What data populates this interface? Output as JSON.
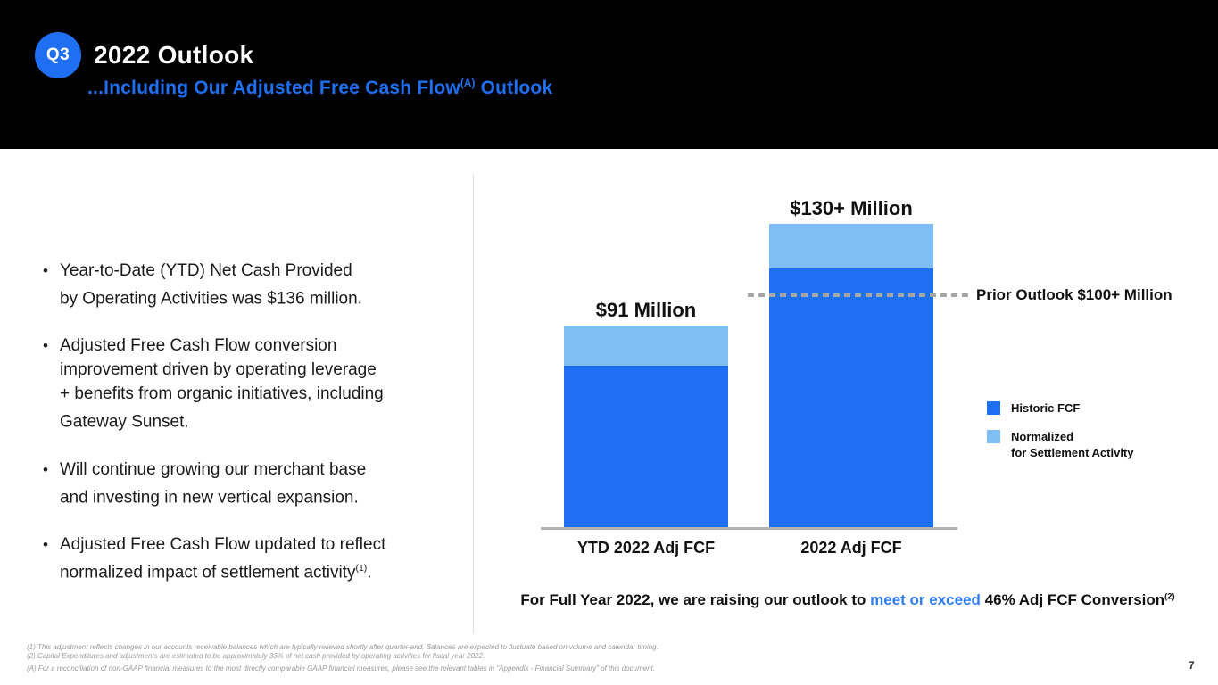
{
  "header": {
    "badge": "Q3",
    "title": "2022 Outlook",
    "subtitle": {
      "prefix": "...Including Our Adjusted Free Cash Flow",
      "sup": "(A)",
      "suffix": " Outlook"
    }
  },
  "colors": {
    "accent_blue": "#1f6ff2",
    "light_blue": "#7fbdf5",
    "highlight_blue": "#2f7df5",
    "reference_gray": "#a6a6a6",
    "baseline_gray": "#b3b3b3",
    "header_black": "#000000"
  },
  "bullets": [
    {
      "text": "Year-to-Date (YTD) Net Cash Provided\nby Operating Activities was $136 million.",
      "sup": "",
      "end": ""
    },
    {
      "text": "Adjusted Free Cash Flow conversion\nimprovement driven by operating leverage\n+ benefits from organic initiatives, including\nGateway Sunset.",
      "sup": "",
      "end": ""
    },
    {
      "text": "Will continue growing our merchant base\nand investing in new vertical expansion.",
      "sup": "",
      "end": ""
    },
    {
      "text": "Adjusted Free Cash Flow updated to reflect\nnormalized impact of settlement activity",
      "sup": "(1)",
      "end": "."
    }
  ],
  "chart_data": {
    "type": "bar",
    "stacked": true,
    "units": "USD millions",
    "y_axis_visible": false,
    "categories": [
      "YTD 2022 Adj FCF",
      "2022 Adj FCF"
    ],
    "series": [
      {
        "name": "Historic FCF",
        "color": "#1f6ff2",
        "values": [
          73,
          117
        ]
      },
      {
        "name": "Normalized for Settlement Activity",
        "color": "#7fbdf5",
        "values": [
          18,
          20
        ]
      }
    ],
    "bar_total_labels": [
      "$91 Million",
      "$130+ Million"
    ],
    "annotation": "46% Adjusted\nFCF Conversion",
    "reference_line": {
      "value": 105,
      "label": "Prior Outlook $100+ Million",
      "style": "dashed",
      "color": "#a6a6a6"
    },
    "legend_labels": [
      "Historic FCF",
      "Normalized\nfor Settlement Activity"
    ],
    "legend_position": "right"
  },
  "outlook": {
    "prefix": "For Full Year 2022, we are raising our outlook to ",
    "highlight": "meet or exceed",
    "suffix": " 46% Adj FCF Conversion",
    "sup": "(2)"
  },
  "footnotes": [
    "(1) This adjustment reflects changes in our accounts receivable balances which are typically relieved shortly after quarter-end. Balances are expected to fluctuate based on volume and calendar timing.",
    "(2) Capital Expenditures and adjustments are estimated to be approximately 33% of net cash provided by operating activities for fiscal year 2022.",
    "(A) For a reconciliation of non-GAAP financial measures to the most directly comparable GAAP financial measures, please see the relevant tables in \"Appendix - Financial Summary\" of this document."
  ],
  "page_number": "7"
}
